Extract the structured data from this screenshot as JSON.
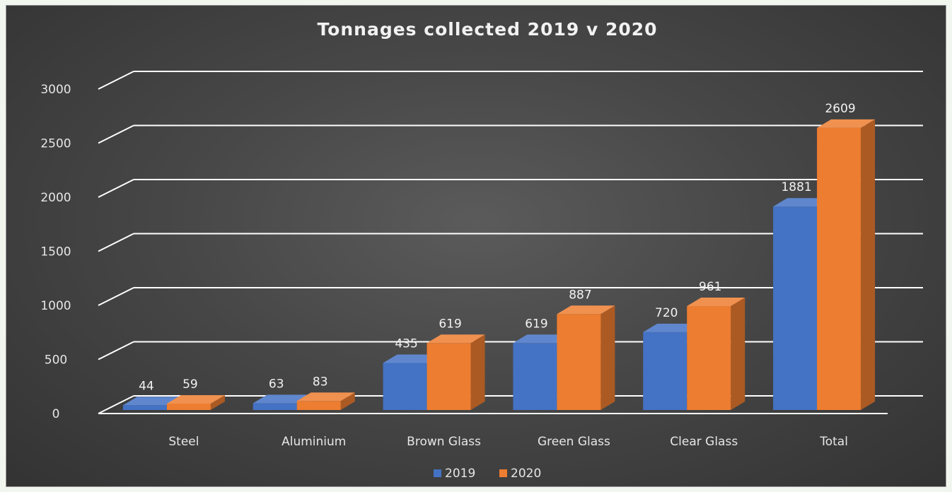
{
  "colors": {
    "series_2019": "#4472c4",
    "series_2020": "#ed7d31",
    "background": "#424242",
    "gridline": "#ffffff",
    "text": "#e6e6e6"
  },
  "chart_data": {
    "type": "bar",
    "style": "3d-clustered-column",
    "title": "Tonnages collected 2019 v 2020",
    "xlabel": "",
    "ylabel": "",
    "categories": [
      "Steel",
      "Aluminium",
      "Brown Glass",
      "Green Glass",
      "Clear Glass",
      "Total"
    ],
    "series": [
      {
        "name": "2019",
        "values": [
          44,
          63,
          435,
          619,
          720,
          1881
        ]
      },
      {
        "name": "2020",
        "values": [
          59,
          83,
          619,
          887,
          961,
          2609
        ]
      }
    ],
    "ylim": [
      0,
      3000
    ],
    "yticks": [
      0,
      500,
      1000,
      1500,
      2000,
      2500,
      3000
    ],
    "grid": true,
    "data_labels": true,
    "legend": "bottom-center"
  }
}
